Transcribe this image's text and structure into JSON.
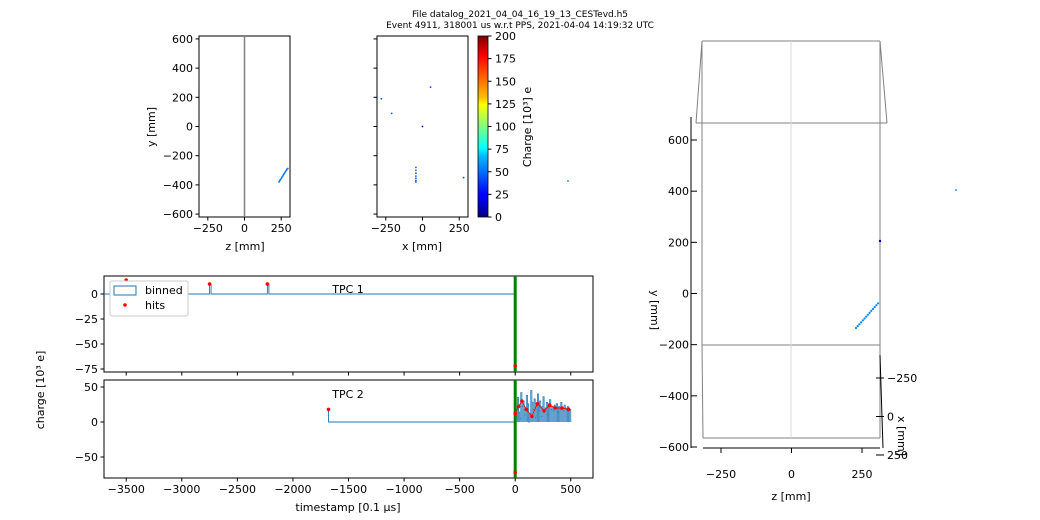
{
  "header": {
    "line1": "File datalog_2021_04_04_16_19_13_CESTevd.h5",
    "line2": "Event 4911, 318001 us w.r.t PPS, 2021-04-04 14:19:32 UTC"
  },
  "colors": {
    "binned": "#1f77b4",
    "hits": "#ff0000",
    "trigger": "#008000",
    "frame": "#808080"
  },
  "chart_data": [
    {
      "id": "zy",
      "type": "scatter",
      "xlabel": "z [mm]",
      "ylabel": "y [mm]",
      "xlim": [
        -310,
        310
      ],
      "ylim": [
        -620,
        620
      ],
      "xticks": [
        -250,
        0,
        250
      ],
      "yticks": [
        -600,
        -400,
        -200,
        0,
        200,
        400,
        600
      ],
      "vertical_line_x": 0,
      "points": [
        [
          235,
          -380
        ],
        [
          240,
          -372
        ],
        [
          245,
          -364
        ],
        [
          250,
          -356
        ],
        [
          255,
          -348
        ],
        [
          260,
          -340
        ],
        [
          265,
          -332
        ],
        [
          270,
          -324
        ],
        [
          275,
          -316
        ],
        [
          280,
          -308
        ],
        [
          285,
          -300
        ],
        [
          290,
          -292
        ],
        [
          295,
          -288
        ]
      ]
    },
    {
      "id": "xy",
      "type": "scatter",
      "xlabel": "x [mm]",
      "ylabel": "",
      "xlim": [
        -310,
        310
      ],
      "ylim": [
        -620,
        620
      ],
      "xticks": [
        -250,
        0,
        250
      ],
      "yticks": [
        -600,
        -400,
        -200,
        0,
        200,
        400,
        600
      ],
      "points": [
        [
          -280,
          190,
          40
        ],
        [
          -210,
          90,
          45
        ],
        [
          55,
          270,
          40
        ],
        [
          0,
          0,
          5
        ],
        [
          -45,
          -280,
          45
        ],
        [
          -45,
          -300,
          45
        ],
        [
          -45,
          -320,
          45
        ],
        [
          -45,
          -340,
          45
        ],
        [
          -45,
          -355,
          45
        ],
        [
          -45,
          -370,
          45
        ],
        [
          -45,
          -380,
          40
        ],
        [
          280,
          -350,
          40
        ]
      ]
    },
    {
      "id": "colorbar",
      "type": "heatmap",
      "label": "Charge [10³] e",
      "range": [
        0,
        200
      ],
      "ticks": [
        0,
        25,
        50,
        75,
        100,
        125,
        150,
        175,
        200
      ]
    },
    {
      "id": "tpc1",
      "type": "line",
      "title": "TPC 1",
      "ylim": [
        -78,
        18
      ],
      "yticks": [
        0,
        -25,
        -50,
        -75
      ],
      "xlim": [
        -3700,
        700
      ],
      "xticks": [
        -3500,
        -3000,
        -2500,
        -2000,
        -1500,
        -1000,
        -500,
        0,
        500
      ],
      "legend": [
        "binned",
        "hits"
      ],
      "legend_position": "top-left",
      "trigger_x": 0,
      "spikes": [
        [
          -2750,
          10
        ],
        [
          -2230,
          10
        ]
      ],
      "hits": [
        [
          -3500,
          14
        ],
        [
          -2750,
          10
        ],
        [
          -2230,
          10
        ],
        [
          0,
          -72
        ]
      ]
    },
    {
      "id": "tpc2",
      "type": "line",
      "title": "TPC 2",
      "ylim": [
        -80,
        60
      ],
      "yticks": [
        50,
        0,
        -50
      ],
      "xlim": [
        -3700,
        700
      ],
      "xticks": [
        -3500,
        -3000,
        -2500,
        -2000,
        -1500,
        -1000,
        -500,
        0,
        500
      ],
      "xlabel": "timestamp [0.1 μs]",
      "shared_ylabel": "charge [10³ e]",
      "trigger_x": 0,
      "step_start": [
        -1680,
        18
      ],
      "burst_x": [
        5,
        15,
        25,
        35,
        45,
        55,
        65,
        75,
        85,
        95,
        105,
        115,
        125,
        135,
        145,
        155,
        165,
        175,
        185,
        195,
        205,
        215,
        225,
        235,
        245,
        255,
        265,
        275,
        285,
        295,
        305,
        315,
        325,
        335,
        345,
        355,
        365,
        375,
        385,
        395,
        405,
        415,
        425,
        435,
        445,
        455,
        465,
        475,
        485,
        495
      ],
      "burst_y": [
        20,
        8,
        35,
        14,
        5,
        42,
        22,
        30,
        10,
        18,
        38,
        26,
        0,
        12,
        45,
        28,
        18,
        33,
        6,
        24,
        40,
        16,
        30,
        8,
        22,
        36,
        14,
        20,
        28,
        10,
        26,
        32,
        18,
        22,
        16,
        24,
        20,
        26,
        14,
        22,
        18,
        28,
        20,
        16,
        24,
        20,
        18,
        22,
        20,
        18
      ],
      "hits": [
        [
          -1680,
          18
        ],
        [
          0,
          -72
        ],
        [
          0,
          12
        ],
        [
          30,
          22
        ],
        [
          60,
          30
        ],
        [
          100,
          18
        ],
        [
          150,
          8
        ],
        [
          200,
          26
        ],
        [
          260,
          16
        ],
        [
          310,
          24
        ],
        [
          360,
          20
        ],
        [
          420,
          20
        ],
        [
          480,
          18
        ]
      ]
    },
    {
      "id": "3d",
      "type": "scatter",
      "xlabel": "z [mm]",
      "ylabel": "y [mm]",
      "zlabel": "x [mm]",
      "xticks": [
        -250,
        0,
        250
      ],
      "yticks": [
        -600,
        -400,
        -200,
        0,
        200,
        400,
        600
      ],
      "zticks": [
        -250,
        0,
        250
      ]
    }
  ]
}
